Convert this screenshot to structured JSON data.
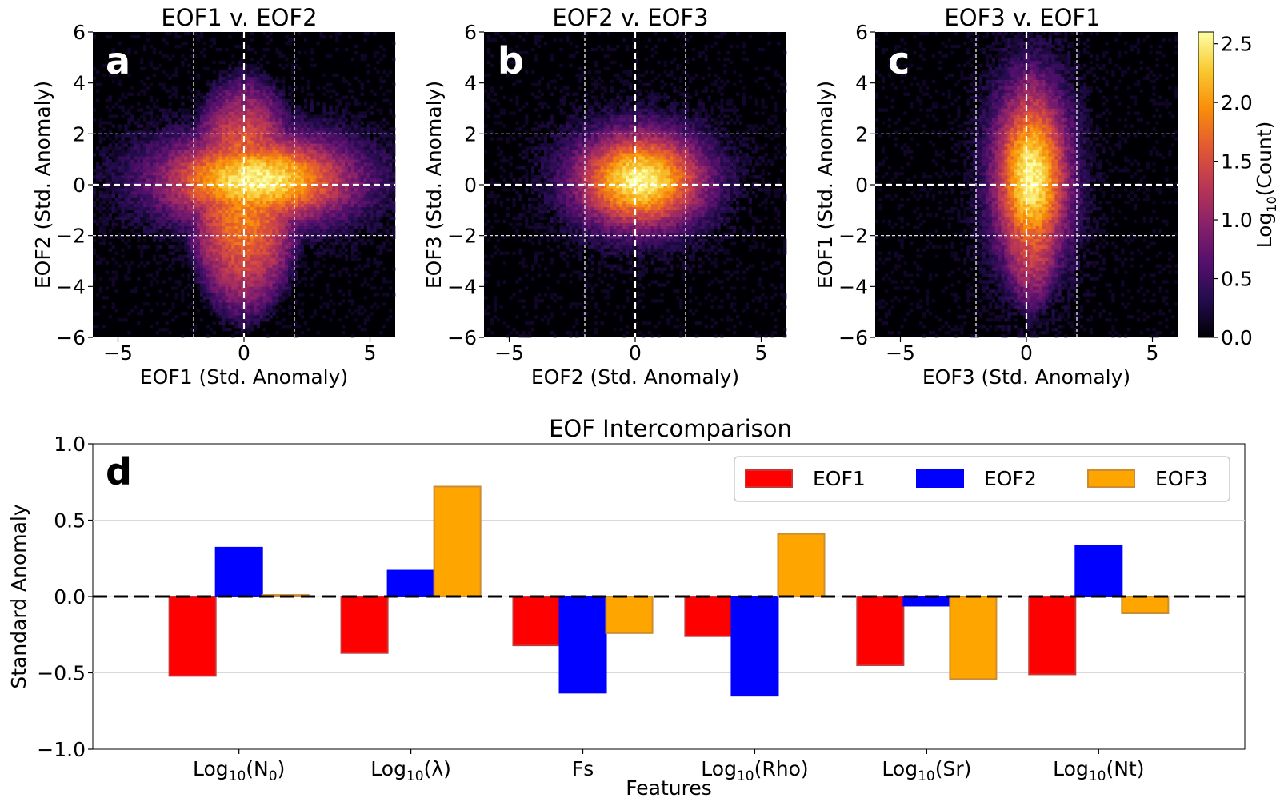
{
  "chart_data": [
    {
      "type": "heatmap",
      "panel": "a",
      "title": "EOF1 v. EOF2",
      "xlabel": "EOF1 (Std. Anomaly)",
      "ylabel": "EOF2 (Std. Anomaly)",
      "xlim": [
        -6,
        6
      ],
      "ylim": [
        -6,
        6
      ],
      "xticks": [
        -5,
        0,
        5
      ],
      "yticks": [
        -6,
        -4,
        -2,
        0,
        2,
        4,
        6
      ],
      "xtick_labels": [
        "−5",
        "0",
        "5"
      ],
      "ytick_labels": [
        "−6",
        "−4",
        "−2",
        "0",
        "2",
        "4",
        "6"
      ],
      "reference_lines": {
        "x": [
          -2,
          0,
          2
        ],
        "y": [
          -2,
          0,
          2
        ]
      },
      "density_shape": {
        "center": [
          0.5,
          0.2
        ],
        "spread": [
          2.8,
          1.3
        ],
        "tail_low": 4.5,
        "tail_high": 4.5
      }
    },
    {
      "type": "heatmap",
      "panel": "b",
      "title": "EOF2 v. EOF3",
      "xlabel": "EOF2 (Std. Anomaly)",
      "ylabel": "EOF3 (Std. Anomaly)",
      "xlim": [
        -6,
        6
      ],
      "ylim": [
        -6,
        6
      ],
      "xticks": [
        -5,
        0,
        5
      ],
      "yticks": [
        -6,
        -4,
        -2,
        0,
        2,
        4,
        6
      ],
      "xtick_labels": [
        "−5",
        "0",
        "5"
      ],
      "ytick_labels": [
        "−6",
        "−4",
        "−2",
        "0",
        "2",
        "4",
        "6"
      ],
      "reference_lines": {
        "x": [
          -2,
          0,
          2
        ],
        "y": [
          -2,
          0,
          2
        ]
      },
      "density_shape": {
        "center": [
          0.2,
          0.2
        ],
        "spread": [
          1.9,
          1.4
        ],
        "tail_low": 3.0,
        "tail_high": 2.5
      }
    },
    {
      "type": "heatmap",
      "panel": "c",
      "title": "EOF3 v. EOF1",
      "xlabel": "EOF3 (Std. Anomaly)",
      "ylabel": "EOF1 (Std. Anomaly)",
      "xlim": [
        -6,
        6
      ],
      "ylim": [
        -6,
        6
      ],
      "xticks": [
        -5,
        0,
        5
      ],
      "yticks": [
        -6,
        -4,
        -2,
        0,
        2,
        4,
        6
      ],
      "xtick_labels": [
        "−5",
        "0",
        "5"
      ],
      "ytick_labels": [
        "−6",
        "−4",
        "−2",
        "0",
        "2",
        "4",
        "6"
      ],
      "reference_lines": {
        "x": [
          -2,
          0,
          2
        ],
        "y": [
          -2,
          0,
          2
        ]
      },
      "density_shape": {
        "center": [
          0.2,
          0.3
        ],
        "spread": [
          1.1,
          2.6
        ],
        "tail_low": 5.2,
        "tail_high": 4.8
      }
    },
    {
      "type": "bar",
      "panel": "d",
      "title": "EOF Intercomparison",
      "xlabel": "Features",
      "ylabel": "Standard Anomaly",
      "categories": [
        "Log10(N0)",
        "Log10(λ)",
        "Fs",
        "Log10(Rho)",
        "Log10(Sr)",
        "Log10(Nt)"
      ],
      "category_labels": [
        {
          "base": "Log",
          "sub": "10",
          "rest": "(N",
          "sub2": "0",
          "end": ")"
        },
        {
          "base": "Log",
          "sub": "10",
          "rest": "(λ)",
          "sub2": "",
          "end": ""
        },
        {
          "base": "Fs",
          "sub": "",
          "rest": "",
          "sub2": "",
          "end": ""
        },
        {
          "base": "Log",
          "sub": "10",
          "rest": "(Rho)",
          "sub2": "",
          "end": ""
        },
        {
          "base": "Log",
          "sub": "10",
          "rest": "(Sr)",
          "sub2": "",
          "end": ""
        },
        {
          "base": "Log",
          "sub": "10",
          "rest": "(Nt)",
          "sub2": "",
          "end": ""
        }
      ],
      "series": [
        {
          "name": "EOF1",
          "color": "#ff0000",
          "edge": "#cc3333",
          "values": [
            -0.52,
            -0.37,
            -0.32,
            -0.26,
            -0.45,
            -0.51
          ]
        },
        {
          "name": "EOF2",
          "color": "#0000ff",
          "edge": "#0000ff",
          "values": [
            0.32,
            0.17,
            -0.63,
            -0.65,
            -0.06,
            0.33
          ]
        },
        {
          "name": "EOF3",
          "color": "#ffa500",
          "edge": "#cc8c33",
          "values": [
            0.01,
            0.72,
            -0.24,
            0.41,
            -0.54,
            -0.11
          ]
        }
      ],
      "ylim": [
        -1.0,
        1.0
      ],
      "yticks": [
        -1.0,
        -0.5,
        0.0,
        0.5,
        1.0
      ],
      "ytick_labels": [
        "−1.0",
        "−0.5",
        "0.0",
        "0.5",
        "1.0"
      ],
      "grid": true,
      "legend_position": "top-right"
    }
  ],
  "panel_labels": [
    "a",
    "b",
    "c",
    "d"
  ],
  "colorbar": {
    "label_prefix": "Log",
    "label_sub": "10",
    "label_suffix": "(Count)",
    "range": [
      0.0,
      2.6
    ],
    "ticks": [
      0.0,
      0.5,
      1.0,
      1.5,
      2.0,
      2.5
    ],
    "tick_labels": [
      "0.0",
      "0.5",
      "1.0",
      "1.5",
      "2.0",
      "2.5"
    ],
    "colormap": "inferno",
    "colors": [
      "#000004",
      "#240c4f",
      "#57106e",
      "#8a226a",
      "#bc3754",
      "#e35932",
      "#f98e09",
      "#f9c932",
      "#fcffa4"
    ]
  }
}
